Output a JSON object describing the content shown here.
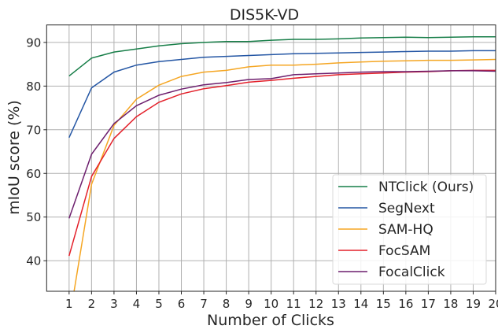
{
  "chart_data": {
    "type": "line",
    "title": "DIS5K-VD",
    "xlabel": "Number of Clicks",
    "ylabel": "mIoU score (%)",
    "xlim": [
      0,
      20
    ],
    "ylim": [
      33,
      94
    ],
    "xticks": [
      1,
      2,
      3,
      4,
      5,
      6,
      7,
      8,
      9,
      10,
      11,
      12,
      13,
      14,
      15,
      16,
      17,
      18,
      19,
      20
    ],
    "yticks": [
      40,
      50,
      60,
      70,
      80,
      90
    ],
    "grid": true,
    "legend_position": "lower-right",
    "x": [
      1,
      2,
      3,
      4,
      5,
      6,
      7,
      8,
      9,
      10,
      11,
      12,
      13,
      14,
      15,
      16,
      17,
      18,
      19,
      20
    ],
    "series": [
      {
        "name": "NTClick (Ours)",
        "color": "#177e48",
        "values": [
          82.3,
          86.4,
          87.8,
          88.5,
          89.2,
          89.7,
          90.0,
          90.2,
          90.2,
          90.5,
          90.7,
          90.7,
          90.8,
          91.0,
          91.1,
          91.2,
          91.1,
          91.2,
          91.3,
          91.3
        ]
      },
      {
        "name": "SegNext",
        "color": "#2456a4",
        "values": [
          68.2,
          79.6,
          83.2,
          84.8,
          85.6,
          86.1,
          86.6,
          86.8,
          87.0,
          87.2,
          87.4,
          87.5,
          87.6,
          87.7,
          87.8,
          87.9,
          88.0,
          88.0,
          88.1,
          88.1
        ]
      },
      {
        "name": "SAM-HQ",
        "color": "#f5a623",
        "values": [
          26.0,
          57.5,
          71.0,
          77.0,
          80.2,
          82.2,
          83.2,
          83.6,
          84.4,
          84.8,
          84.8,
          85.0,
          85.3,
          85.5,
          85.7,
          85.8,
          85.9,
          85.9,
          86.0,
          86.1
        ]
      },
      {
        "name": "FocSAM",
        "color": "#e3202a",
        "values": [
          41.1,
          59.3,
          68.0,
          73.0,
          76.3,
          78.2,
          79.4,
          80.1,
          80.9,
          81.3,
          81.8,
          82.2,
          82.6,
          82.8,
          83.0,
          83.2,
          83.3,
          83.5,
          83.6,
          83.6
        ]
      },
      {
        "name": "FocalClick",
        "color": "#6d1f6e",
        "values": [
          49.7,
          64.4,
          71.4,
          75.5,
          77.9,
          79.3,
          80.3,
          80.8,
          81.5,
          81.7,
          82.6,
          82.8,
          83.0,
          83.2,
          83.3,
          83.3,
          83.4,
          83.5,
          83.5,
          83.4
        ]
      }
    ]
  }
}
